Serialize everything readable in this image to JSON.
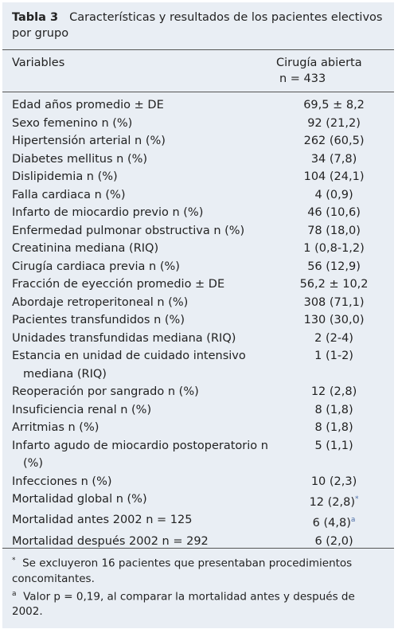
{
  "header": {
    "label": "Tabla 3",
    "title": "Características y resultados de los pacientes electivos por grupo"
  },
  "table": {
    "columns": [
      "Variables",
      "Cirugía abierta",
      "n = 433"
    ],
    "rows": [
      [
        "Edad años promedio ± DE",
        "69,5 ± 8,2"
      ],
      [
        "Sexo femenino n (%)",
        "92 (21,2)"
      ],
      [
        "Hipertensión arterial n (%)",
        "262 (60,5)"
      ],
      [
        "Diabetes mellitus n (%)",
        "34 (7,8)"
      ],
      [
        "Dislipidemia n (%)",
        "104 (24,1)"
      ],
      [
        "Falla cardiaca n (%)",
        "4 (0,9)"
      ],
      [
        "Infarto de miocardio previo n (%)",
        "46 (10,6)"
      ],
      [
        "Enfermedad pulmonar obstructiva n (%)",
        "78 (18,0)"
      ],
      [
        "Creatinina mediana (RIQ)",
        "1 (0,8-1,2)"
      ],
      [
        "Cirugía cardiaca previa n (%)",
        "56 (12,9)"
      ],
      [
        "Fracción de eyección promedio ± DE",
        "56,2 ± 10,2"
      ],
      [
        "Abordaje retroperitoneal n (%)",
        "308 (71,1)"
      ],
      [
        "Pacientes transfundidos n (%)",
        "130 (30,0)"
      ],
      [
        "Unidades transfundidas mediana (RIQ)",
        "2 (2-4)"
      ],
      [
        "Estancia en unidad de cuidado intensivo mediana (RIQ)",
        "1 (1-2)"
      ],
      [
        "Reoperación por sangrado n (%)",
        "12 (2,8)"
      ],
      [
        "Insuficiencia renal n (%)",
        "8 (1,8)"
      ],
      [
        "Arritmias n (%)",
        "8 (1,8)"
      ],
      [
        "Infarto agudo de miocardio postoperatorio n (%)",
        "5 (1,1)"
      ],
      [
        "Infecciones n (%)",
        "10 (2,3)"
      ],
      [
        "Mortalidad global n (%)",
        "12 (2,8)",
        "*"
      ],
      [
        "Mortalidad antes 2002 n = 125",
        "6 (4,8)",
        "a"
      ],
      [
        "Mortalidad después 2002 n = 292",
        "6 (2,0)"
      ]
    ]
  },
  "footnotes": [
    {
      "mark": "*",
      "text": "Se excluyeron 16 pacientes que presentaban procedimientos concomitantes."
    },
    {
      "mark": "a",
      "text": "Valor p = 0,19, al comparar la mortalidad antes y después de 2002."
    }
  ]
}
